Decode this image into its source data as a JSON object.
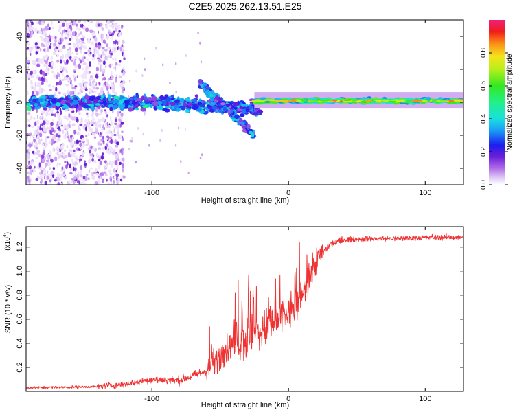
{
  "title": "C2E5.2025.262.13.51.E25",
  "chart_data": [
    {
      "type": "heatmap",
      "name": "spectrogram",
      "xlabel": "Height of straight line (km)",
      "ylabel": "Frequency (Hz)",
      "xlim": [
        -192,
        128
      ],
      "ylim": [
        -50,
        50
      ],
      "xticks": [
        -100,
        0,
        100
      ],
      "yticks": [
        -40,
        -20,
        0,
        20,
        40
      ],
      "colorbar": {
        "label": "Normalized spectral amplitude",
        "range": [
          0,
          1
        ],
        "ticks": [
          "0.0",
          "0.2",
          "0.4",
          "0.6",
          "0.8"
        ],
        "tick_values": [
          0,
          0.2,
          0.4,
          0.6,
          0.8
        ]
      },
      "features": [
        {
          "description": "scattered noise",
          "x_range": [
            -192,
            -120
          ],
          "y_range": [
            -50,
            50
          ],
          "amplitude": 0.05
        },
        {
          "description": "carrier band",
          "x_range": [
            -190,
            -20
          ],
          "y_center": 0,
          "width_hz": 8,
          "amplitude": 0.3
        },
        {
          "description": "split branch",
          "x_range": [
            -65,
            -25
          ],
          "y_from": 12,
          "y_to": -20,
          "amplitude": 0.3
        },
        {
          "description": "strong carrier",
          "x_range": [
            -25,
            128
          ],
          "y_center": 1,
          "width_hz": 4,
          "amplitude": 0.75
        }
      ]
    },
    {
      "type": "line",
      "name": "snr",
      "xlabel": "Height of straight line (km)",
      "ylabel": "SNR (10 * v/v)",
      "scale_label": "(x10",
      "scale_exponent": "4",
      "xlim": [
        -192,
        128
      ],
      "ylim": [
        0,
        1.37
      ],
      "xticks": [
        -100,
        0,
        100
      ],
      "yticks": [
        0.2,
        0.4,
        0.6,
        0.8,
        1.0,
        1.2
      ],
      "ytick_labels": [
        "0.2",
        "0.4",
        "0.6",
        "0.8",
        "1.0",
        "1.2"
      ],
      "color": "#ee3333",
      "trend": {
        "x": [
          -192,
          -140,
          -120,
          -100,
          -80,
          -60,
          -50,
          -40,
          -30,
          -20,
          -10,
          0,
          10,
          20,
          30,
          40,
          60,
          80,
          100,
          128
        ],
        "y": [
          0.03,
          0.04,
          0.06,
          0.1,
          0.09,
          0.17,
          0.3,
          0.4,
          0.45,
          0.5,
          0.57,
          0.65,
          0.78,
          1.08,
          1.22,
          1.26,
          1.27,
          1.27,
          1.28,
          1.28
        ]
      }
    }
  ]
}
